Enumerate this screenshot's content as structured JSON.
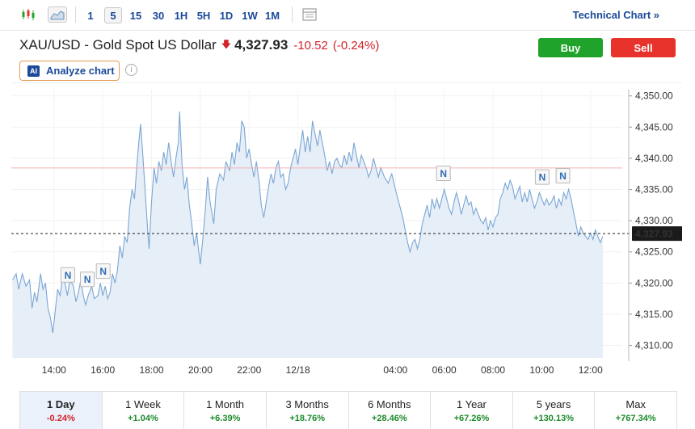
{
  "toolbar": {
    "timeframes": [
      "1",
      "5",
      "15",
      "30",
      "1H",
      "5H",
      "1D",
      "1W",
      "1M"
    ],
    "active_timeframe": "5",
    "technical_chart_label": "Technical Chart »"
  },
  "header": {
    "title": "XAU/USD - Gold Spot US Dollar",
    "price": "4,327.93",
    "change": "-10.52",
    "change_pct": "(-0.24%)",
    "buy_label": "Buy",
    "sell_label": "Sell",
    "analyze_badge": "AI",
    "analyze_label": "Analyze chart"
  },
  "colors": {
    "line": "#7ba7d4",
    "area_fill": "#e6eef7",
    "prev_close_line": "#f2b4b4",
    "buy": "#1fa32a",
    "sell": "#e8322c",
    "negative": "#d2232a",
    "positive": "#1b8a2a",
    "link": "#1b4a9a"
  },
  "chart_data": {
    "type": "area",
    "ylim": [
      4308,
      4351
    ],
    "y_ticks": [
      "4,310.00",
      "4,315.00",
      "4,320.00",
      "4,325.00",
      "4,330.00",
      "4,335.00",
      "4,340.00",
      "4,345.00",
      "4,350.00"
    ],
    "y_tick_values": [
      4310,
      4315,
      4320,
      4325,
      4330,
      4335,
      4340,
      4345,
      4350
    ],
    "x_ticks": [
      "14:00",
      "16:00",
      "18:00",
      "20:00",
      "22:00",
      "12/18",
      "04:00",
      "06:00",
      "08:00",
      "10:00",
      "12:00"
    ],
    "x_tick_hours": [
      14,
      16,
      18,
      20,
      22,
      24,
      28,
      30,
      32,
      34,
      36
    ],
    "x_range_hours": [
      12.25,
      37.3
    ],
    "last_price_label": "4,327.93",
    "last_price": 4327.93,
    "previous_close": 4338.45,
    "news_marker_label": "N",
    "news_markers": [
      {
        "hour": 14.55,
        "value": 4321.3
      },
      {
        "hour": 15.35,
        "value": 4320.6
      },
      {
        "hour": 16.0,
        "value": 4321.9
      },
      {
        "hour": 29.95,
        "value": 4337.6
      },
      {
        "hour": 34.0,
        "value": 4337.0
      },
      {
        "hour": 34.85,
        "value": 4337.2
      }
    ],
    "series": [
      {
        "points": [
          [
            12.3,
            4320.5
          ],
          [
            12.45,
            4321.5
          ],
          [
            12.55,
            4319.0
          ],
          [
            12.7,
            4321.5
          ],
          [
            12.85,
            4319.5
          ],
          [
            13.0,
            4320.5
          ],
          [
            13.1,
            4316.0
          ],
          [
            13.2,
            4318.5
          ],
          [
            13.3,
            4317.0
          ],
          [
            13.45,
            4321.5
          ],
          [
            13.55,
            4319.0
          ],
          [
            13.65,
            4320.0
          ],
          [
            13.75,
            4316.0
          ],
          [
            13.85,
            4314.5
          ],
          [
            13.95,
            4312.0
          ],
          [
            14.05,
            4315.5
          ],
          [
            14.15,
            4319.0
          ],
          [
            14.25,
            4318.0
          ],
          [
            14.35,
            4321.0
          ],
          [
            14.45,
            4320.0
          ],
          [
            14.55,
            4318.0
          ],
          [
            14.65,
            4320.5
          ],
          [
            14.8,
            4319.5
          ],
          [
            14.9,
            4317.0
          ],
          [
            15.0,
            4318.5
          ],
          [
            15.1,
            4320.5
          ],
          [
            15.2,
            4318.0
          ],
          [
            15.3,
            4316.5
          ],
          [
            15.4,
            4318.0
          ],
          [
            15.55,
            4319.5
          ],
          [
            15.65,
            4317.5
          ],
          [
            15.8,
            4318.0
          ],
          [
            15.9,
            4320.0
          ],
          [
            16.0,
            4318.0
          ],
          [
            16.1,
            4319.5
          ],
          [
            16.2,
            4317.5
          ],
          [
            16.3,
            4318.5
          ],
          [
            16.4,
            4321.5
          ],
          [
            16.5,
            4320.0
          ],
          [
            16.6,
            4322.0
          ],
          [
            16.7,
            4326.0
          ],
          [
            16.8,
            4324.0
          ],
          [
            16.9,
            4327.5
          ],
          [
            17.0,
            4326.5
          ],
          [
            17.1,
            4332.0
          ],
          [
            17.2,
            4335.0
          ],
          [
            17.3,
            4333.5
          ],
          [
            17.4,
            4339.0
          ],
          [
            17.5,
            4343.5
          ],
          [
            17.55,
            4345.5
          ],
          [
            17.65,
            4340.0
          ],
          [
            17.75,
            4334.0
          ],
          [
            17.85,
            4328.0
          ],
          [
            17.9,
            4325.5
          ],
          [
            18.0,
            4333.0
          ],
          [
            18.1,
            4338.5
          ],
          [
            18.2,
            4336.0
          ],
          [
            18.3,
            4339.5
          ],
          [
            18.4,
            4338.0
          ],
          [
            18.5,
            4341.0
          ],
          [
            18.6,
            4339.0
          ],
          [
            18.7,
            4342.5
          ],
          [
            18.8,
            4339.5
          ],
          [
            18.9,
            4337.0
          ],
          [
            19.0,
            4340.0
          ],
          [
            19.1,
            4342.5
          ],
          [
            19.15,
            4347.5
          ],
          [
            19.25,
            4339.0
          ],
          [
            19.35,
            4335.0
          ],
          [
            19.45,
            4337.0
          ],
          [
            19.55,
            4332.5
          ],
          [
            19.65,
            4329.5
          ],
          [
            19.75,
            4326.0
          ],
          [
            19.85,
            4328.0
          ],
          [
            19.95,
            4324.5
          ],
          [
            20.0,
            4323.0
          ],
          [
            20.1,
            4327.0
          ],
          [
            20.2,
            4331.5
          ],
          [
            20.3,
            4337.0
          ],
          [
            20.4,
            4333.0
          ],
          [
            20.55,
            4329.5
          ],
          [
            20.65,
            4335.0
          ],
          [
            20.8,
            4337.5
          ],
          [
            20.95,
            4336.5
          ],
          [
            21.05,
            4339.5
          ],
          [
            21.2,
            4338.0
          ],
          [
            21.3,
            4341.0
          ],
          [
            21.4,
            4339.0
          ],
          [
            21.5,
            4342.5
          ],
          [
            21.6,
            4341.0
          ],
          [
            21.7,
            4346.0
          ],
          [
            21.8,
            4345.0
          ],
          [
            21.9,
            4340.0
          ],
          [
            22.0,
            4341.5
          ],
          [
            22.1,
            4339.0
          ],
          [
            22.2,
            4337.0
          ],
          [
            22.3,
            4339.5
          ],
          [
            22.4,
            4336.5
          ],
          [
            22.5,
            4332.5
          ],
          [
            22.6,
            4330.5
          ],
          [
            22.7,
            4333.0
          ],
          [
            22.8,
            4335.5
          ],
          [
            22.9,
            4337.5
          ],
          [
            23.0,
            4336.0
          ],
          [
            23.1,
            4338.5
          ],
          [
            23.2,
            4339.5
          ],
          [
            23.3,
            4337.0
          ],
          [
            23.4,
            4337.5
          ],
          [
            23.5,
            4335.0
          ],
          [
            23.6,
            4336.0
          ],
          [
            23.7,
            4338.5
          ],
          [
            23.8,
            4340.0
          ],
          [
            23.9,
            4341.5
          ],
          [
            24.0,
            4339.0
          ],
          [
            24.1,
            4342.0
          ],
          [
            24.2,
            4344.5
          ],
          [
            24.3,
            4341.0
          ],
          [
            24.4,
            4343.5
          ],
          [
            24.5,
            4341.0
          ],
          [
            24.6,
            4346.0
          ],
          [
            24.7,
            4344.0
          ],
          [
            24.8,
            4342.0
          ],
          [
            24.9,
            4344.5
          ],
          [
            25.0,
            4342.5
          ],
          [
            25.1,
            4340.5
          ],
          [
            25.2,
            4338.0
          ],
          [
            25.3,
            4339.5
          ],
          [
            25.4,
            4337.5
          ],
          [
            25.5,
            4339.5
          ],
          [
            25.6,
            4340.0
          ],
          [
            25.7,
            4339.0
          ],
          [
            25.8,
            4338.5
          ],
          [
            25.9,
            4340.5
          ],
          [
            26.0,
            4339.0
          ],
          [
            26.1,
            4341.0
          ],
          [
            26.2,
            4339.5
          ],
          [
            26.3,
            4342.5
          ],
          [
            26.4,
            4340.5
          ],
          [
            26.5,
            4338.5
          ],
          [
            26.6,
            4340.5
          ],
          [
            26.7,
            4339.5
          ],
          [
            26.8,
            4338.5
          ],
          [
            26.9,
            4337.0
          ],
          [
            27.0,
            4338.0
          ],
          [
            27.1,
            4340.0
          ],
          [
            27.2,
            4338.5
          ],
          [
            27.3,
            4337.0
          ],
          [
            27.4,
            4338.5
          ],
          [
            27.55,
            4337.0
          ],
          [
            27.7,
            4336.0
          ],
          [
            27.85,
            4337.5
          ],
          [
            28.0,
            4335.0
          ],
          [
            28.1,
            4333.5
          ],
          [
            28.2,
            4332.0
          ],
          [
            28.3,
            4330.5
          ],
          [
            28.4,
            4328.5
          ],
          [
            28.5,
            4326.5
          ],
          [
            28.6,
            4325.0
          ],
          [
            28.7,
            4326.5
          ],
          [
            28.8,
            4327.0
          ],
          [
            28.9,
            4325.5
          ],
          [
            29.0,
            4327.0
          ],
          [
            29.1,
            4329.5
          ],
          [
            29.2,
            4331.0
          ],
          [
            29.3,
            4332.5
          ],
          [
            29.4,
            4330.5
          ],
          [
            29.5,
            4333.5
          ],
          [
            29.6,
            4332.0
          ],
          [
            29.7,
            4333.5
          ],
          [
            29.8,
            4332.0
          ],
          [
            29.9,
            4333.5
          ],
          [
            30.0,
            4335.0
          ],
          [
            30.1,
            4333.5
          ],
          [
            30.2,
            4332.0
          ],
          [
            30.3,
            4331.0
          ],
          [
            30.4,
            4333.0
          ],
          [
            30.5,
            4334.5
          ],
          [
            30.6,
            4333.0
          ],
          [
            30.7,
            4331.0
          ],
          [
            30.8,
            4332.5
          ],
          [
            30.9,
            4334.0
          ],
          [
            31.0,
            4332.5
          ],
          [
            31.1,
            4333.0
          ],
          [
            31.2,
            4331.0
          ],
          [
            31.3,
            4332.0
          ],
          [
            31.4,
            4331.0
          ],
          [
            31.5,
            4330.0
          ],
          [
            31.6,
            4329.5
          ],
          [
            31.7,
            4330.5
          ],
          [
            31.8,
            4328.5
          ],
          [
            31.9,
            4330.0
          ],
          [
            32.0,
            4329.0
          ],
          [
            32.1,
            4330.5
          ],
          [
            32.2,
            4331.0
          ],
          [
            32.3,
            4333.5
          ],
          [
            32.4,
            4334.5
          ],
          [
            32.5,
            4336.0
          ],
          [
            32.6,
            4335.0
          ],
          [
            32.7,
            4336.5
          ],
          [
            32.8,
            4335.5
          ],
          [
            32.9,
            4333.5
          ],
          [
            33.0,
            4334.5
          ],
          [
            33.1,
            4335.5
          ],
          [
            33.2,
            4333.0
          ],
          [
            33.3,
            4334.5
          ],
          [
            33.4,
            4333.0
          ],
          [
            33.5,
            4335.0
          ],
          [
            33.6,
            4333.5
          ],
          [
            33.7,
            4332.0
          ],
          [
            33.8,
            4333.0
          ],
          [
            33.9,
            4334.5
          ],
          [
            34.0,
            4333.5
          ],
          [
            34.1,
            4332.5
          ],
          [
            34.2,
            4333.5
          ],
          [
            34.3,
            4332.5
          ],
          [
            34.4,
            4333.0
          ],
          [
            34.5,
            4334.0
          ],
          [
            34.6,
            4332.0
          ],
          [
            34.7,
            4333.5
          ],
          [
            34.8,
            4332.5
          ],
          [
            34.9,
            4334.5
          ],
          [
            35.0,
            4333.5
          ],
          [
            35.1,
            4335.0
          ],
          [
            35.2,
            4333.5
          ],
          [
            35.3,
            4331.5
          ],
          [
            35.4,
            4329.5
          ],
          [
            35.5,
            4327.5
          ],
          [
            35.6,
            4329.0
          ],
          [
            35.7,
            4328.0
          ],
          [
            35.8,
            4327.5
          ],
          [
            35.9,
            4327.0
          ],
          [
            36.0,
            4328.0
          ],
          [
            36.1,
            4327.0
          ],
          [
            36.2,
            4328.5
          ],
          [
            36.3,
            4327.5
          ],
          [
            36.4,
            4326.5
          ],
          [
            36.5,
            4327.5
          ]
        ]
      }
    ]
  },
  "performance": [
    {
      "label": "1 Day",
      "value": "-0.24%",
      "sign": "neg",
      "active": true
    },
    {
      "label": "1 Week",
      "value": "+1.04%",
      "sign": "pos",
      "active": false
    },
    {
      "label": "1 Month",
      "value": "+6.39%",
      "sign": "pos",
      "active": false
    },
    {
      "label": "3 Months",
      "value": "+18.76%",
      "sign": "pos",
      "active": false
    },
    {
      "label": "6 Months",
      "value": "+28.46%",
      "sign": "pos",
      "active": false
    },
    {
      "label": "1 Year",
      "value": "+67.26%",
      "sign": "pos",
      "active": false
    },
    {
      "label": "5 years",
      "value": "+130.13%",
      "sign": "pos",
      "active": false
    },
    {
      "label": "Max",
      "value": "+767.34%",
      "sign": "pos",
      "active": false
    }
  ]
}
